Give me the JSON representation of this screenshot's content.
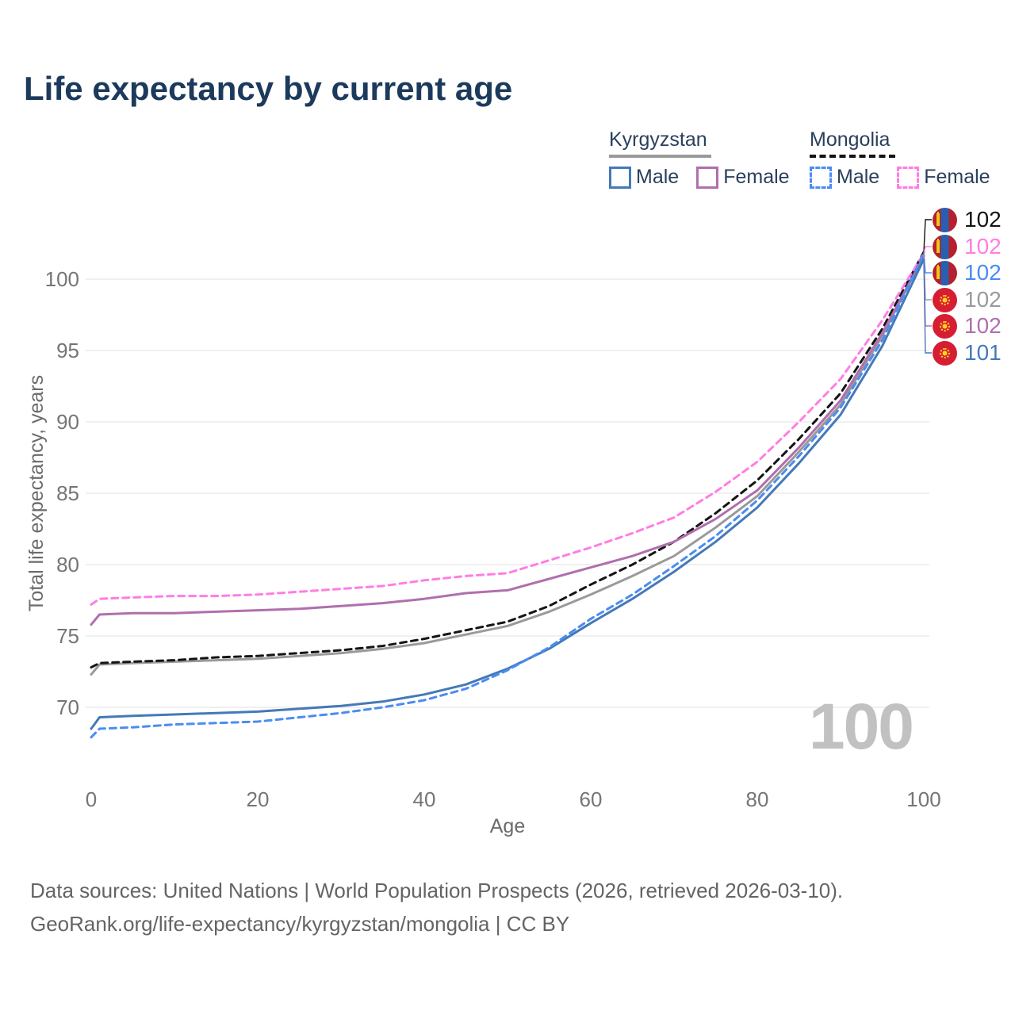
{
  "title": "Life expectancy by current age",
  "legend": {
    "groups": [
      {
        "country": "Kyrgyzstan",
        "style": "solid",
        "items": [
          {
            "label": "Male"
          },
          {
            "label": "Female"
          }
        ]
      },
      {
        "country": "Mongolia",
        "style": "dashed",
        "items": [
          {
            "label": "Male"
          },
          {
            "label": "Female"
          }
        ]
      }
    ]
  },
  "colors": {
    "title": "#1c3a5c",
    "kyrgyzstan_all": "#9a9a9a",
    "mongolia_all": "#141414",
    "kyrgyzstan_male": "#4579b8",
    "kyrgyzstan_female": "#b06fae",
    "mongolia_male": "#4a8cf2",
    "mongolia_female": "#ff7de3",
    "grid": "#e8e8e8",
    "watermark": "#c1c1c1"
  },
  "chart_data": {
    "type": "line",
    "title": "Life expectancy by current age",
    "xlabel": "Age",
    "ylabel": "Total life expectancy, years",
    "xlim": [
      0,
      100
    ],
    "ylim": [
      66,
      103
    ],
    "xticks": [
      0,
      20,
      40,
      60,
      80,
      100
    ],
    "yticks": [
      70,
      75,
      80,
      85,
      90,
      95,
      100
    ],
    "grid": "horizontal",
    "legend_position": "top-right",
    "x": [
      0,
      1,
      5,
      10,
      15,
      20,
      25,
      30,
      35,
      40,
      45,
      50,
      55,
      60,
      65,
      70,
      75,
      80,
      85,
      90,
      95,
      100
    ],
    "series": [
      {
        "name": "Kyrgyzstan All",
        "country": "Kyrgyzstan",
        "sex": "all",
        "style": "solid",
        "color": "#9a9a9a",
        "end_label": 102,
        "values": [
          72.3,
          73.0,
          73.1,
          73.2,
          73.3,
          73.4,
          73.6,
          73.8,
          74.1,
          74.5,
          75.1,
          75.7,
          76.7,
          77.9,
          79.2,
          80.6,
          82.6,
          84.8,
          87.9,
          91.2,
          96.0,
          101.7
        ]
      },
      {
        "name": "Mongolia All",
        "country": "Mongolia",
        "sex": "all",
        "style": "dashed",
        "color": "#141414",
        "end_label": 102,
        "values": [
          72.8,
          73.1,
          73.2,
          73.3,
          73.5,
          73.6,
          73.8,
          74.0,
          74.3,
          74.8,
          75.4,
          76.0,
          77.1,
          78.6,
          80.0,
          81.6,
          83.6,
          85.9,
          88.8,
          92.0,
          96.5,
          101.9
        ]
      },
      {
        "name": "Kyrgyzstan Female",
        "country": "Kyrgyzstan",
        "sex": "female",
        "style": "solid",
        "color": "#b06fae",
        "end_label": 102,
        "values": [
          75.8,
          76.5,
          76.6,
          76.6,
          76.7,
          76.8,
          76.9,
          77.1,
          77.3,
          77.6,
          78.0,
          78.2,
          79.0,
          79.8,
          80.6,
          81.6,
          83.2,
          85.2,
          88.2,
          91.5,
          96.2,
          101.6
        ]
      },
      {
        "name": "Mongolia Female",
        "country": "Mongolia",
        "sex": "female",
        "style": "dashed",
        "color": "#ff7de3",
        "end_label": 102,
        "values": [
          77.2,
          77.6,
          77.7,
          77.8,
          77.8,
          77.9,
          78.1,
          78.3,
          78.5,
          78.9,
          79.2,
          79.4,
          80.3,
          81.2,
          82.2,
          83.3,
          85.1,
          87.2,
          90.0,
          93.0,
          97.1,
          101.8
        ]
      },
      {
        "name": "Kyrgyzstan Male",
        "country": "Kyrgyzstan",
        "sex": "male",
        "style": "solid",
        "color": "#4579b8",
        "end_label": 101,
        "values": [
          68.5,
          69.3,
          69.4,
          69.5,
          69.6,
          69.7,
          69.9,
          70.1,
          70.4,
          70.9,
          71.6,
          72.7,
          74.1,
          75.9,
          77.6,
          79.5,
          81.6,
          84.0,
          87.1,
          90.5,
          95.3,
          101.4
        ]
      },
      {
        "name": "Mongolia Male",
        "country": "Mongolia",
        "sex": "male",
        "style": "dashed",
        "color": "#4a8cf2",
        "end_label": 102,
        "values": [
          67.9,
          68.5,
          68.6,
          68.8,
          68.9,
          69.0,
          69.3,
          69.6,
          70.0,
          70.5,
          71.3,
          72.6,
          74.2,
          76.2,
          77.9,
          79.9,
          82.0,
          84.5,
          87.6,
          91.0,
          95.7,
          101.8
        ]
      }
    ]
  },
  "end_labels": [
    {
      "value": "102",
      "flag": "mongolia",
      "color": "#141414",
      "series": "Mongolia All"
    },
    {
      "value": "102",
      "flag": "mongolia",
      "color": "#ff7de3",
      "series": "Mongolia Female"
    },
    {
      "value": "102",
      "flag": "mongolia",
      "color": "#4a8cf2",
      "series": "Mongolia Male"
    },
    {
      "value": "102",
      "flag": "kyrgyzstan",
      "color": "#9a9a9a",
      "series": "Kyrgyzstan All"
    },
    {
      "value": "102",
      "flag": "kyrgyzstan",
      "color": "#b06fae",
      "series": "Kyrgyzstan Female"
    },
    {
      "value": "101",
      "flag": "kyrgyzstan",
      "color": "#4579b8",
      "series": "Kyrgyzstan Male"
    }
  ],
  "watermark": "100",
  "yaxis": {
    "label": "Total life expectancy, years"
  },
  "xaxis": {
    "label": "Age"
  },
  "footer": {
    "line1": "Data sources: United Nations | World Population Prospects (2026, retrieved 2026-03-10).",
    "line2": "GeoRank.org/life-expectancy/kyrgyzstan/mongolia | CC BY"
  }
}
